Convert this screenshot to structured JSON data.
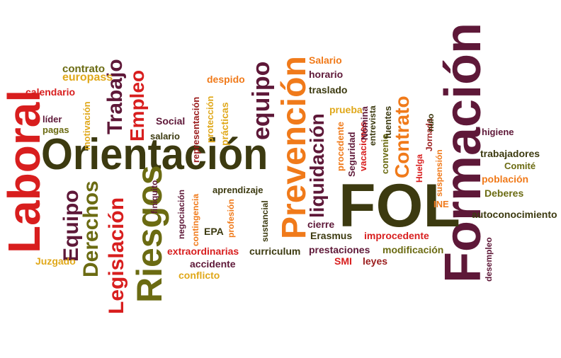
{
  "colors": {
    "red": "#d81e1e",
    "orange": "#f07a1a",
    "olive": "#6b6b12",
    "dark_olive": "#3c3a10",
    "maroon": "#5e1838",
    "dark_red": "#9a1c1c",
    "yellow": "#e0a81a"
  },
  "words": {
    "fol": "FOL",
    "formacion": "Formación",
    "orientacion": "Orientación",
    "laboral": "Laboral",
    "prevencion": "Prevención",
    "riesgos": "Riesgos",
    "trabajo": "Trabajo",
    "empleo": "Empleo",
    "equipo_v": "equipo",
    "equipo_l": "Equipo",
    "derechos": "Derechos",
    "legislacion": "Legislación",
    "contrato_v": "Contrato",
    "liquidacion": "liquidación",
    "contrato_h": "contrato",
    "europass": "europass",
    "calendario": "calendario",
    "lider": "líder",
    "pagas": "pagas",
    "motivacion": "motivación",
    "social": "Social",
    "salario_l": "salario",
    "finiquito": "finiquito",
    "representacion": "representación",
    "proteccion": "protección",
    "despido": "despido",
    "practicas": "prácticas",
    "salario_u": "Salario",
    "horario": "horario",
    "traslado": "traslado",
    "prueba": "prueba",
    "procedente": "procedente",
    "seguridad": "Seguridad",
    "vacaciones": "vacaciones",
    "entrevista": "entrevista",
    "nomina": "Nómina",
    "convenio": "convenio",
    "fuentes": "fuentes",
    "huelga": "Huelga",
    "jornada": "Jornada",
    "nulo": "nulo",
    "suspension": "suspensión",
    "higiene": "higiene",
    "trabajadores": "trabajadores",
    "comite": "Comité",
    "poblacion": "población",
    "deberes": "Deberes",
    "ine": "INE",
    "autoconocimiento": "autoconocimiento",
    "desempleo": "desempleo",
    "aprendizaje": "aprendizaje",
    "contingencia": "contingencia",
    "negociacion": "negociación",
    "profesion": "profesión",
    "sustancial": "sustancial",
    "epa": "EPA",
    "cierre": "cierre",
    "erasmus": "Erasmus",
    "improcedente": "improcedente",
    "prestaciones": "prestaciones",
    "modificacion": "modificación",
    "smi": "SMI",
    "leyes": "leyes",
    "extraordinarias": "extraordinarias",
    "curriculum": "curriculum",
    "accidente": "accidente",
    "conflicto": "conflicto",
    "juzgado": "Juzgado"
  }
}
